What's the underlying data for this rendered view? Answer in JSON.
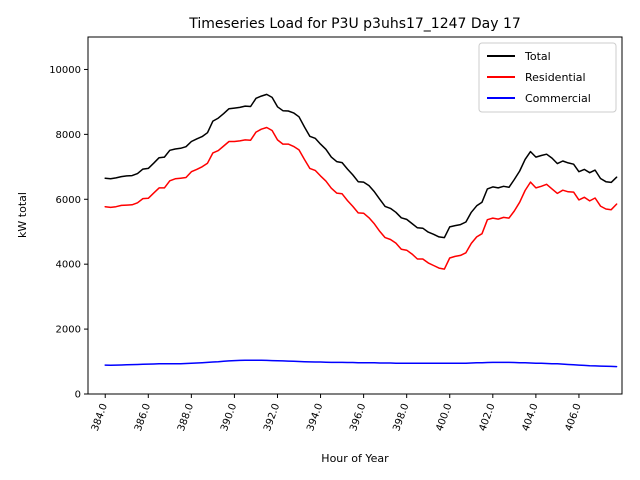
{
  "chart_data": {
    "type": "line",
    "title": "Timeseries Load for P3U p3uhs17_1247  Day 17",
    "xlabel": "Hour of Year",
    "ylabel": "kW total",
    "xlim": [
      383.2,
      408.0
    ],
    "ylim": [
      0,
      11000
    ],
    "x_ticks": [
      384,
      386,
      388,
      390,
      392,
      394,
      396,
      398,
      400,
      402,
      404,
      406
    ],
    "x_tick_labels": [
      "384.0",
      "386.0",
      "388.0",
      "390.0",
      "392.0",
      "394.0",
      "396.0",
      "398.0",
      "400.0",
      "402.0",
      "404.0",
      "406.0"
    ],
    "y_ticks": [
      0,
      2000,
      4000,
      6000,
      8000,
      10000
    ],
    "y_tick_labels": [
      "0",
      "2000",
      "4000",
      "6000",
      "8000",
      "10000"
    ],
    "legend_position": "top-right",
    "x": [
      384.0,
      384.25,
      384.5,
      384.75,
      385.0,
      385.25,
      385.5,
      385.75,
      386.0,
      386.25,
      386.5,
      386.75,
      387.0,
      387.25,
      387.5,
      387.75,
      388.0,
      388.25,
      388.5,
      388.75,
      389.0,
      389.25,
      389.5,
      389.75,
      390.0,
      390.25,
      390.5,
      390.75,
      391.0,
      391.25,
      391.5,
      391.75,
      392.0,
      392.25,
      392.5,
      392.75,
      393.0,
      393.25,
      393.5,
      393.75,
      394.0,
      394.25,
      394.5,
      394.75,
      395.0,
      395.25,
      395.5,
      395.75,
      396.0,
      396.25,
      396.5,
      396.75,
      397.0,
      397.25,
      397.5,
      397.75,
      398.0,
      398.25,
      398.5,
      398.75,
      399.0,
      399.25,
      399.5,
      399.75,
      400.0,
      400.25,
      400.5,
      400.75,
      401.0,
      401.25,
      401.5,
      401.75,
      402.0,
      402.25,
      402.5,
      402.75,
      403.0,
      403.25,
      403.5,
      403.75,
      404.0,
      404.25,
      404.5,
      404.75,
      405.0,
      405.25,
      405.5,
      405.75,
      406.0,
      406.25,
      406.5,
      406.75,
      407.0,
      407.25,
      407.5,
      407.75
    ],
    "series": [
      {
        "name": "Total",
        "color": "#000000",
        "values": [
          6650,
          6630,
          6660,
          6700,
          6720,
          6730,
          6790,
          6930,
          6950,
          7110,
          7280,
          7300,
          7510,
          7550,
          7570,
          7620,
          7780,
          7860,
          7930,
          8050,
          8410,
          8500,
          8640,
          8790,
          8810,
          8830,
          8870,
          8860,
          9110,
          9180,
          9230,
          9140,
          8850,
          8730,
          8720,
          8660,
          8540,
          8230,
          7940,
          7880,
          7700,
          7540,
          7300,
          7160,
          7130,
          6930,
          6750,
          6540,
          6530,
          6420,
          6230,
          6000,
          5780,
          5720,
          5600,
          5430,
          5380,
          5250,
          5120,
          5110,
          4990,
          4920,
          4840,
          4820,
          5150,
          5190,
          5220,
          5300,
          5600,
          5800,
          5910,
          6320,
          6380,
          6350,
          6400,
          6370,
          6610,
          6870,
          7230,
          7470,
          7300,
          7350,
          7390,
          7270,
          7100,
          7180,
          7120,
          7080,
          6850,
          6920,
          6820,
          6900,
          6640,
          6540,
          6520,
          6680
        ]
      },
      {
        "name": "Residential",
        "color": "#ff0000",
        "values": [
          5770,
          5750,
          5770,
          5810,
          5820,
          5830,
          5890,
          6020,
          6030,
          6190,
          6350,
          6350,
          6570,
          6630,
          6650,
          6670,
          6850,
          6920,
          7000,
          7110,
          7430,
          7500,
          7640,
          7780,
          7780,
          7800,
          7830,
          7820,
          8070,
          8160,
          8210,
          8120,
          7830,
          7700,
          7700,
          7630,
          7520,
          7230,
          6950,
          6890,
          6720,
          6560,
          6340,
          6190,
          6170,
          5960,
          5780,
          5580,
          5570,
          5430,
          5240,
          5010,
          4820,
          4760,
          4650,
          4460,
          4430,
          4310,
          4160,
          4160,
          4040,
          3960,
          3880,
          3850,
          4190,
          4240,
          4270,
          4350,
          4640,
          4840,
          4940,
          5370,
          5420,
          5390,
          5440,
          5420,
          5640,
          5910,
          6270,
          6530,
          6350,
          6400,
          6460,
          6320,
          6180,
          6280,
          6230,
          6220,
          5980,
          6060,
          5950,
          6040,
          5790,
          5700,
          5680,
          5850
        ]
      },
      {
        "name": "Commercial",
        "color": "#0000ff",
        "values": [
          890,
          885,
          890,
          895,
          900,
          905,
          910,
          915,
          920,
          925,
          930,
          935,
          935,
          935,
          935,
          940,
          945,
          955,
          965,
          975,
          985,
          995,
          1010,
          1020,
          1030,
          1035,
          1040,
          1040,
          1040,
          1040,
          1035,
          1030,
          1025,
          1020,
          1015,
          1010,
          1000,
          995,
          990,
          985,
          985,
          980,
          975,
          975,
          975,
          970,
          970,
          965,
          965,
          960,
          960,
          955,
          955,
          955,
          950,
          950,
          950,
          950,
          950,
          950,
          950,
          950,
          950,
          950,
          950,
          950,
          950,
          950,
          955,
          960,
          965,
          970,
          975,
          975,
          975,
          975,
          970,
          965,
          960,
          955,
          950,
          945,
          940,
          935,
          930,
          920,
          910,
          900,
          890,
          880,
          870,
          865,
          860,
          855,
          850,
          845
        ]
      }
    ]
  }
}
